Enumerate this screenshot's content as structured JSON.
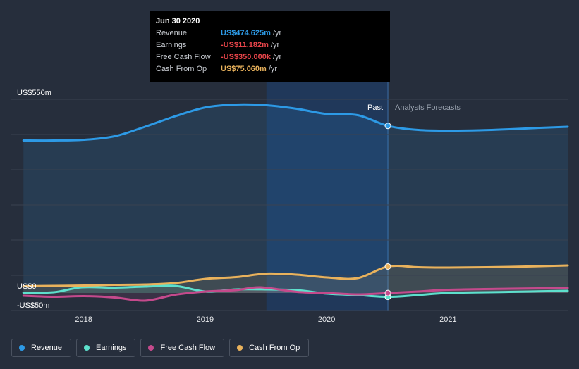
{
  "tooltip": {
    "date": "Jun 30 2020",
    "rows": [
      {
        "label": "Revenue",
        "value": "US$474.625m",
        "unit": "/yr",
        "color": "#2d9ae6"
      },
      {
        "label": "Earnings",
        "value": "-US$11.182m",
        "unit": "/yr",
        "color": "#e8454a"
      },
      {
        "label": "Free Cash Flow",
        "value": "-US$350.000k",
        "unit": "/yr",
        "color": "#e8454a"
      },
      {
        "label": "Cash From Op",
        "value": "US$75.060m",
        "unit": "/yr",
        "color": "#e9b25c"
      }
    ]
  },
  "labels": {
    "past": "Past",
    "forecast": "Analysts Forecasts"
  },
  "legend": [
    {
      "label": "Revenue",
      "color": "#2d9ae6"
    },
    {
      "label": "Earnings",
      "color": "#5de0cd"
    },
    {
      "label": "Free Cash Flow",
      "color": "#c44a8c"
    },
    {
      "label": "Cash From Op",
      "color": "#e9b25c"
    }
  ],
  "chart_data": {
    "type": "line",
    "y_tick_labels": [
      {
        "value": 550,
        "label": "US$550m"
      },
      {
        "value": 0,
        "label": "US$0"
      },
      {
        "value": -50,
        "label": "-US$50m"
      }
    ],
    "x_tick_labels": [
      {
        "value": 2018,
        "label": "2018"
      },
      {
        "value": 2019,
        "label": "2019"
      },
      {
        "value": 2020,
        "label": "2020"
      },
      {
        "value": 2021,
        "label": "2021"
      }
    ],
    "ylim": [
      -50,
      550
    ],
    "xlim": [
      2017.4,
      2021.98
    ],
    "past_end": 2020.5,
    "highlight_start": 2019.5,
    "grid": true,
    "series": [
      {
        "name": "Revenue",
        "color": "#2d9ae6",
        "x": [
          2017.5,
          2017.75,
          2018.0,
          2018.25,
          2018.5,
          2018.75,
          2019.0,
          2019.25,
          2019.5,
          2019.75,
          2020.0,
          2020.25,
          2020.5,
          2020.75,
          2021.0,
          2021.25,
          2021.5,
          2021.75,
          2021.98
        ],
        "y": [
          433,
          433,
          435,
          445,
          472,
          502,
          527,
          535,
          533,
          523,
          508,
          505,
          474.6,
          463,
          461,
          462,
          465,
          469,
          472
        ]
      },
      {
        "name": "Earnings",
        "color": "#5de0cd",
        "x": [
          2017.5,
          2017.75,
          2017.98,
          2018.25,
          2018.5,
          2018.75,
          2019.0,
          2019.25,
          2019.5,
          2019.75,
          2020.0,
          2020.25,
          2020.5,
          2020.75,
          2021.0,
          2021.5,
          2021.98
        ],
        "y": [
          1,
          2,
          16,
          15,
          18,
          20,
          4,
          10,
          10,
          8,
          -2,
          -6,
          -11.2,
          -6,
          0,
          3,
          6
        ]
      },
      {
        "name": "Free Cash Flow",
        "color": "#c44a8c",
        "x": [
          2017.5,
          2017.75,
          2018.0,
          2018.25,
          2018.5,
          2018.75,
          2019.0,
          2019.25,
          2019.45,
          2019.75,
          2020.0,
          2020.25,
          2020.5,
          2020.75,
          2021.0,
          2021.5,
          2021.98
        ],
        "y": [
          -8,
          -11,
          -9,
          -13,
          -22,
          -5,
          4,
          8,
          16,
          3,
          0,
          -4,
          -0.35,
          4,
          9,
          12,
          14
        ]
      },
      {
        "name": "Cash From Op",
        "color": "#e9b25c",
        "x": [
          2017.5,
          2017.75,
          2018.0,
          2018.25,
          2018.5,
          2018.75,
          2019.0,
          2019.25,
          2019.5,
          2019.75,
          2020.0,
          2020.25,
          2020.5,
          2020.75,
          2021.0,
          2021.5,
          2021.98
        ],
        "y": [
          19,
          20,
          21,
          23,
          24,
          28,
          40,
          45,
          55,
          52,
          44,
          42,
          75.06,
          73,
          72,
          74,
          78
        ]
      }
    ]
  }
}
